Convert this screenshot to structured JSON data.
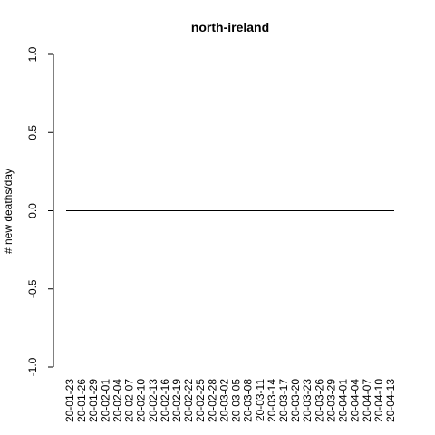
{
  "chart_data": {
    "type": "line",
    "title": "north-ireland",
    "xlabel": "",
    "ylabel": "# new deaths/day",
    "ylim": [
      -1.0,
      1.0
    ],
    "y_ticks": [
      "-1.0",
      "-0.5",
      "0.0",
      "0.5",
      "1.0"
    ],
    "x_tick_labels": [
      "20-01-23",
      "20-01-26",
      "20-01-29",
      "20-02-01",
      "20-02-04",
      "20-02-07",
      "20-02-10",
      "20-02-13",
      "20-02-16",
      "20-02-19",
      "20-02-22",
      "20-02-25",
      "20-02-28",
      "20-03-02",
      "20-03-05",
      "20-03-08",
      "20-03-11",
      "20-03-14",
      "20-03-17",
      "20-03-20",
      "20-03-23",
      "20-03-26",
      "20-03-29",
      "20-04-01",
      "20-04-04",
      "20-04-07",
      "20-04-10",
      "20-04-13"
    ],
    "x_start": "2020-01-23",
    "x_end": "2020-04-16",
    "y_constant": 0
  }
}
